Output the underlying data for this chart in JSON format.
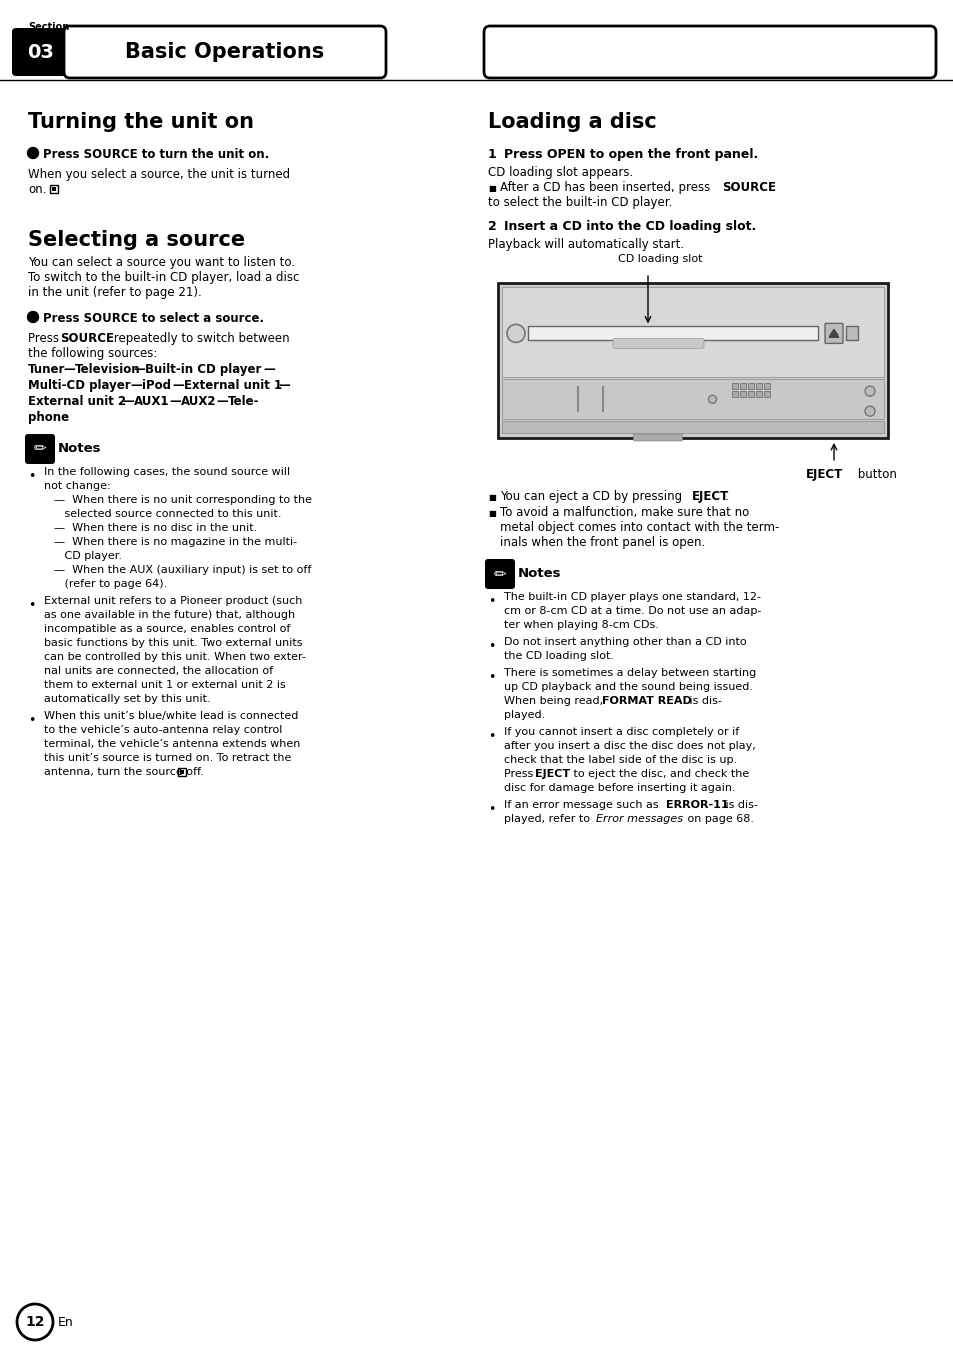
{
  "page_bg": "#ffffff",
  "section_num": "03",
  "section_label": "Section",
  "section_title": "Basic Operations",
  "page_number": "12"
}
